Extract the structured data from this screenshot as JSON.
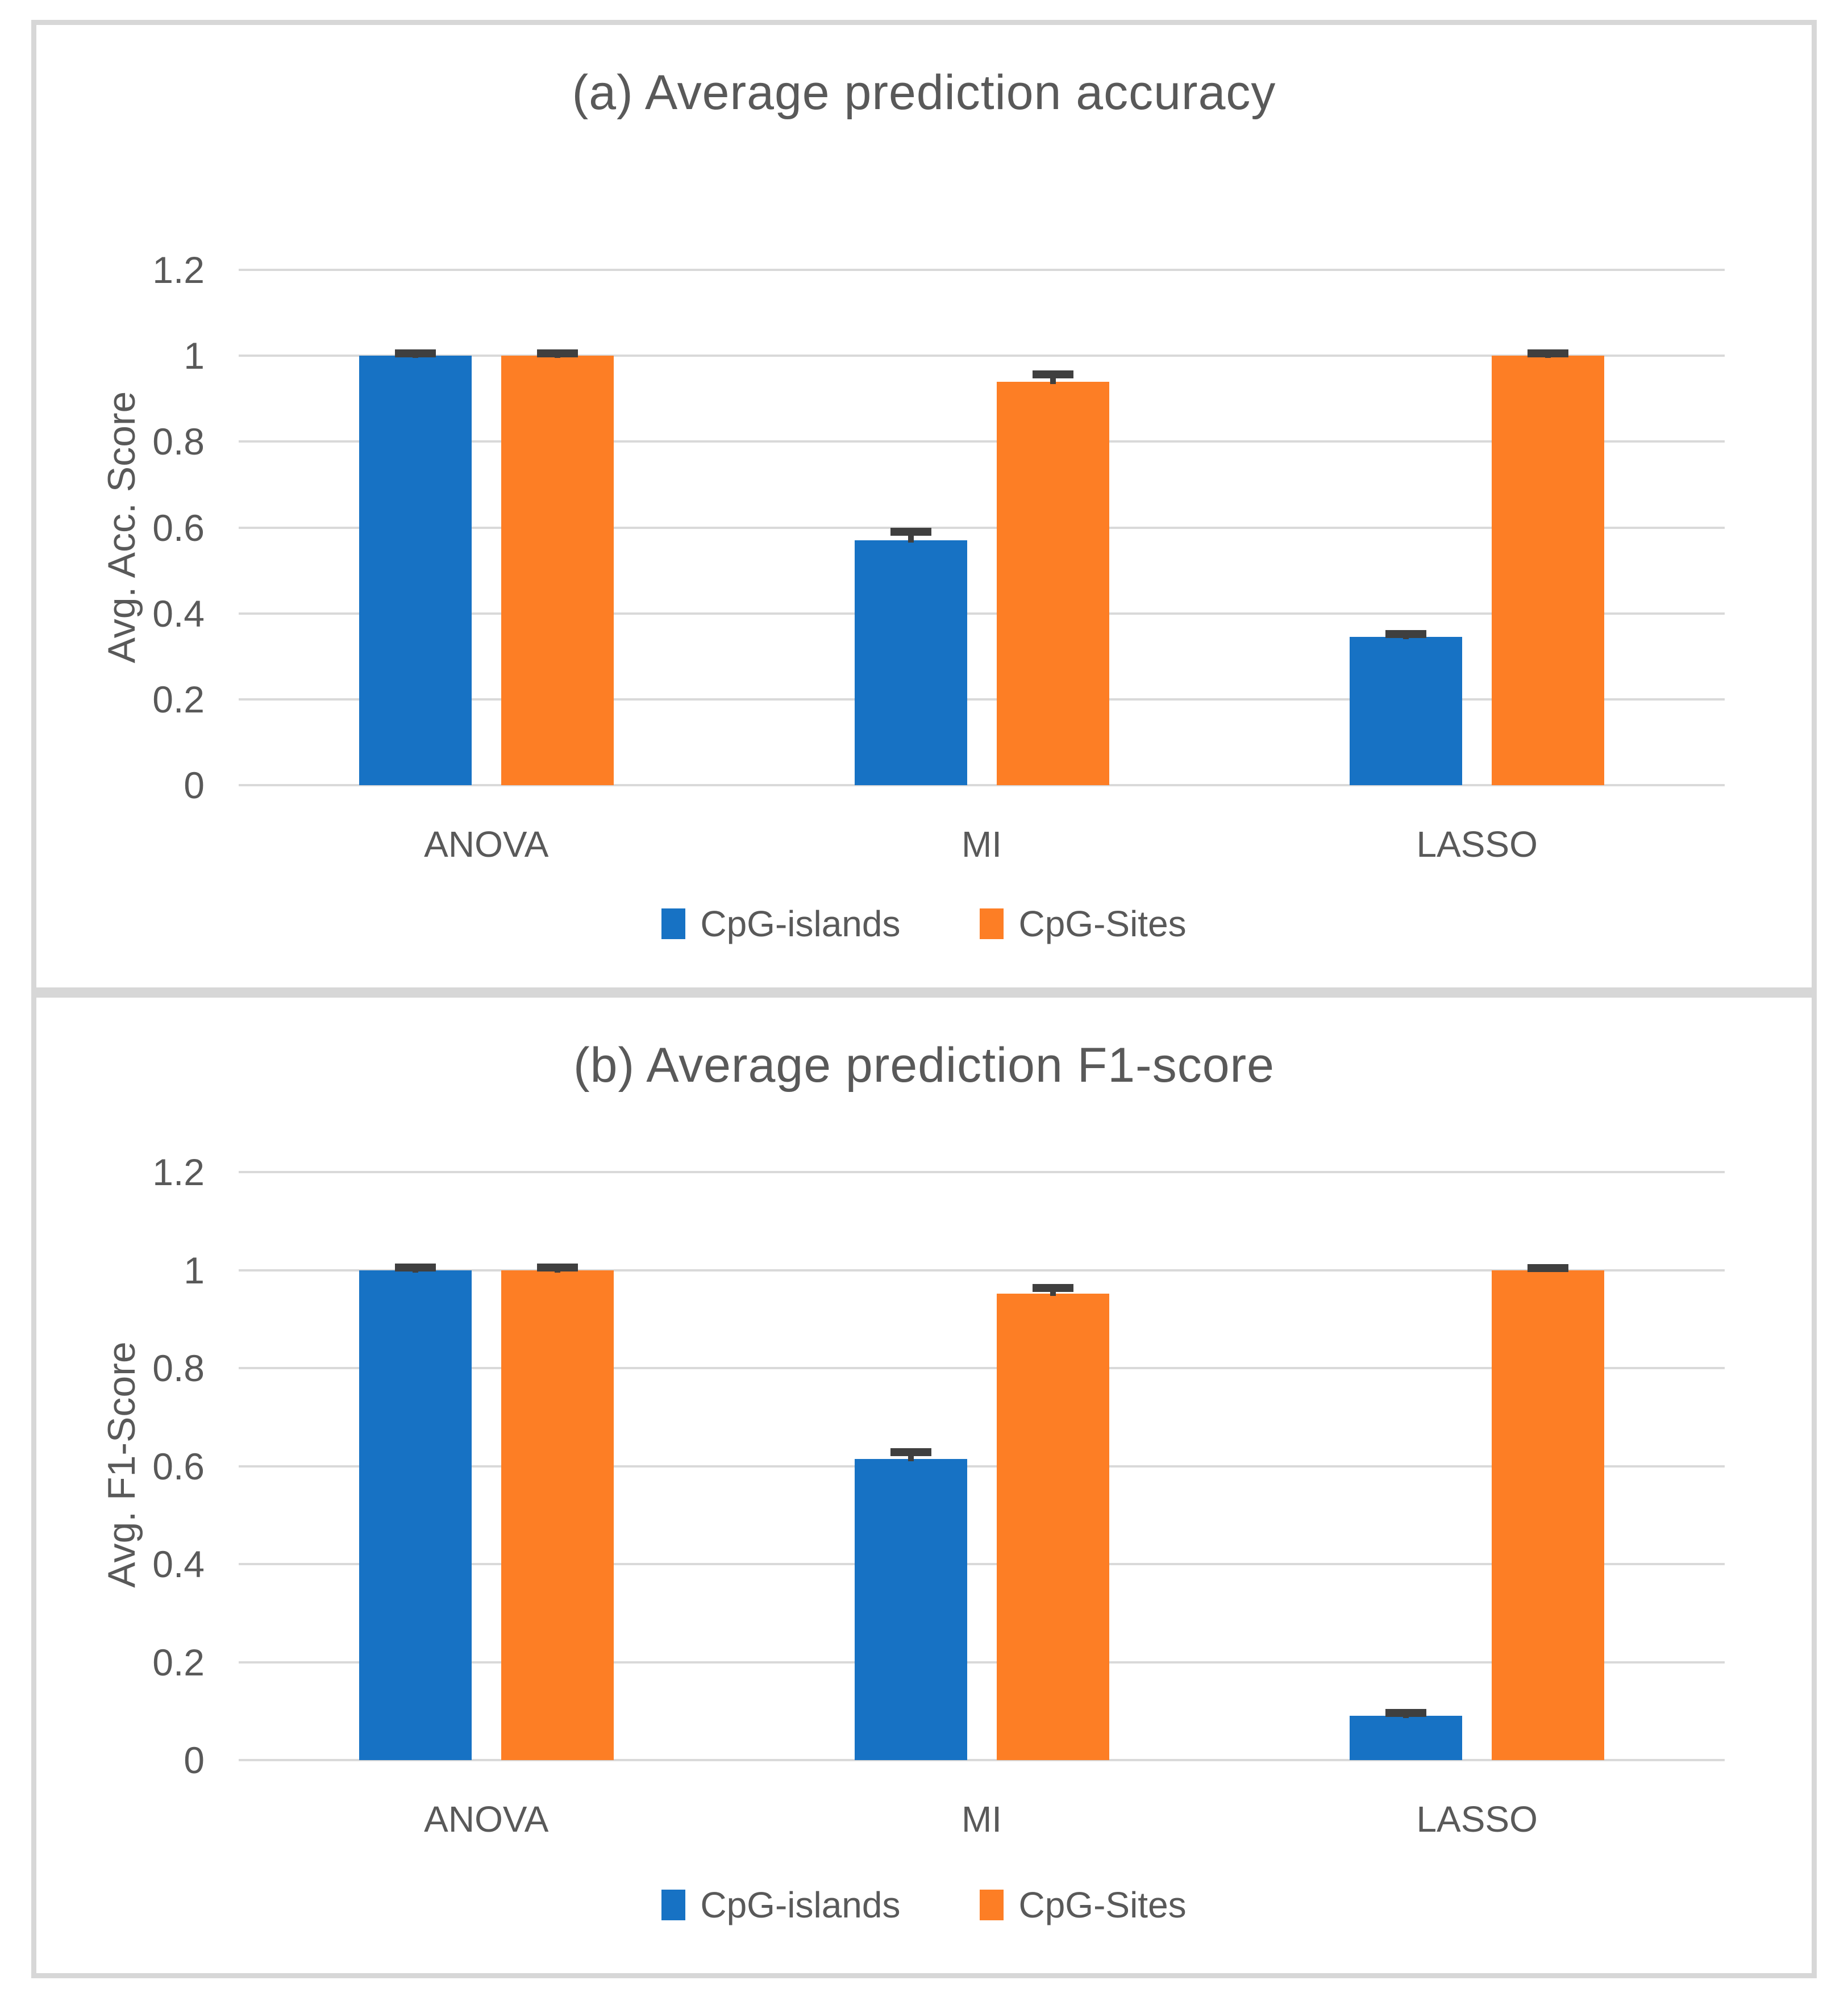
{
  "page": {
    "background_color": "#ffffff",
    "panel_border_color": "#d7d7d7",
    "text_color": "#595959",
    "gridline_color": "#d9d9d9",
    "error_bar_color": "#3f3f3f"
  },
  "chart_data": [
    {
      "type": "bar",
      "title": "(a) Average prediction accuracy",
      "xlabel": "",
      "ylabel": "Avg. Acc. Score",
      "categories": [
        "ANOVA",
        "MI",
        "LASSO"
      ],
      "series": [
        {
          "name": "CpG-islands",
          "color": "#1772C4",
          "values": [
            1.0,
            0.57,
            0.345
          ],
          "errors": [
            0.006,
            0.02,
            0.007
          ]
        },
        {
          "name": "CpG-Sites",
          "color": "#FD7E25",
          "values": [
            1.0,
            0.94,
            1.0
          ],
          "errors": [
            0.006,
            0.016,
            0.005
          ]
        }
      ],
      "ylim": [
        0,
        1.2
      ],
      "ytick_values": [
        0,
        0.2,
        0.4,
        0.6,
        0.8,
        1,
        1.2
      ],
      "ytick_labels": [
        "0",
        "0.2",
        "0.4",
        "0.6",
        "0.8",
        "1",
        "1.2"
      ],
      "grid": true,
      "legend_position": "bottom"
    },
    {
      "type": "bar",
      "title": "(b) Average prediction F1-score",
      "xlabel": "",
      "ylabel": "Avg. F1-Score",
      "categories": [
        "ANOVA",
        "MI",
        "LASSO"
      ],
      "series": [
        {
          "name": "CpG-islands",
          "color": "#1772C4",
          "values": [
            1.0,
            0.615,
            0.09
          ],
          "errors": [
            0.005,
            0.013,
            0.006
          ]
        },
        {
          "name": "CpG-Sites",
          "color": "#FD7E25",
          "values": [
            1.0,
            0.952,
            1.0
          ],
          "errors": [
            0.005,
            0.011,
            0.004
          ]
        }
      ],
      "ylim": [
        0,
        1.2
      ],
      "ytick_values": [
        0,
        0.2,
        0.4,
        0.6,
        0.8,
        1,
        1.2
      ],
      "ytick_labels": [
        "0",
        "0.2",
        "0.4",
        "0.6",
        "0.8",
        "1",
        "1.2"
      ],
      "grid": true,
      "legend_position": "bottom"
    }
  ]
}
